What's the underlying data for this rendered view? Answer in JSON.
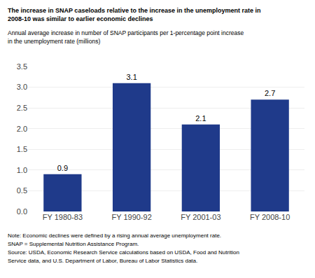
{
  "chart_data": {
    "type": "bar",
    "title": [
      "The increase in SNAP caseloads relative to the increase in the unemployment rate in",
      "2008-10 was similar to earlier economic declines"
    ],
    "subtitle": [
      "Annual average increase in number of SNAP participants per 1-percentage point increase",
      "in the unemployment rate (millions)"
    ],
    "annotations": [
      "Note: Economic declines were defined by a rising annual average unemployment rate.",
      "SNAP = Supplemental Nutrition Assistance Program.",
      "Source: USDA, Economic Research Service calculations based on USDA, Food and Nutrition",
      "Service data, and U.S. Department of Labor, Bureau of Labor Statistics data."
    ],
    "categories": [
      "FY 1980-83",
      "FY 1990-92",
      "FY 2001-03",
      "FY 2008-10"
    ],
    "values": [
      0.9,
      3.1,
      2.1,
      2.7
    ],
    "color": "#1F3A8A",
    "ylim": [
      0,
      3.5
    ],
    "yticks": [
      {
        "value": 0,
        "label": "0.0"
      },
      0.5,
      {
        "value": 1,
        "label": "1.0"
      },
      1.5,
      {
        "value": 2,
        "label": "2.0"
      },
      2.5,
      {
        "value": 3,
        "label": "3.0"
      },
      3.5
    ],
    "grid": true,
    "data_labels": true
  }
}
